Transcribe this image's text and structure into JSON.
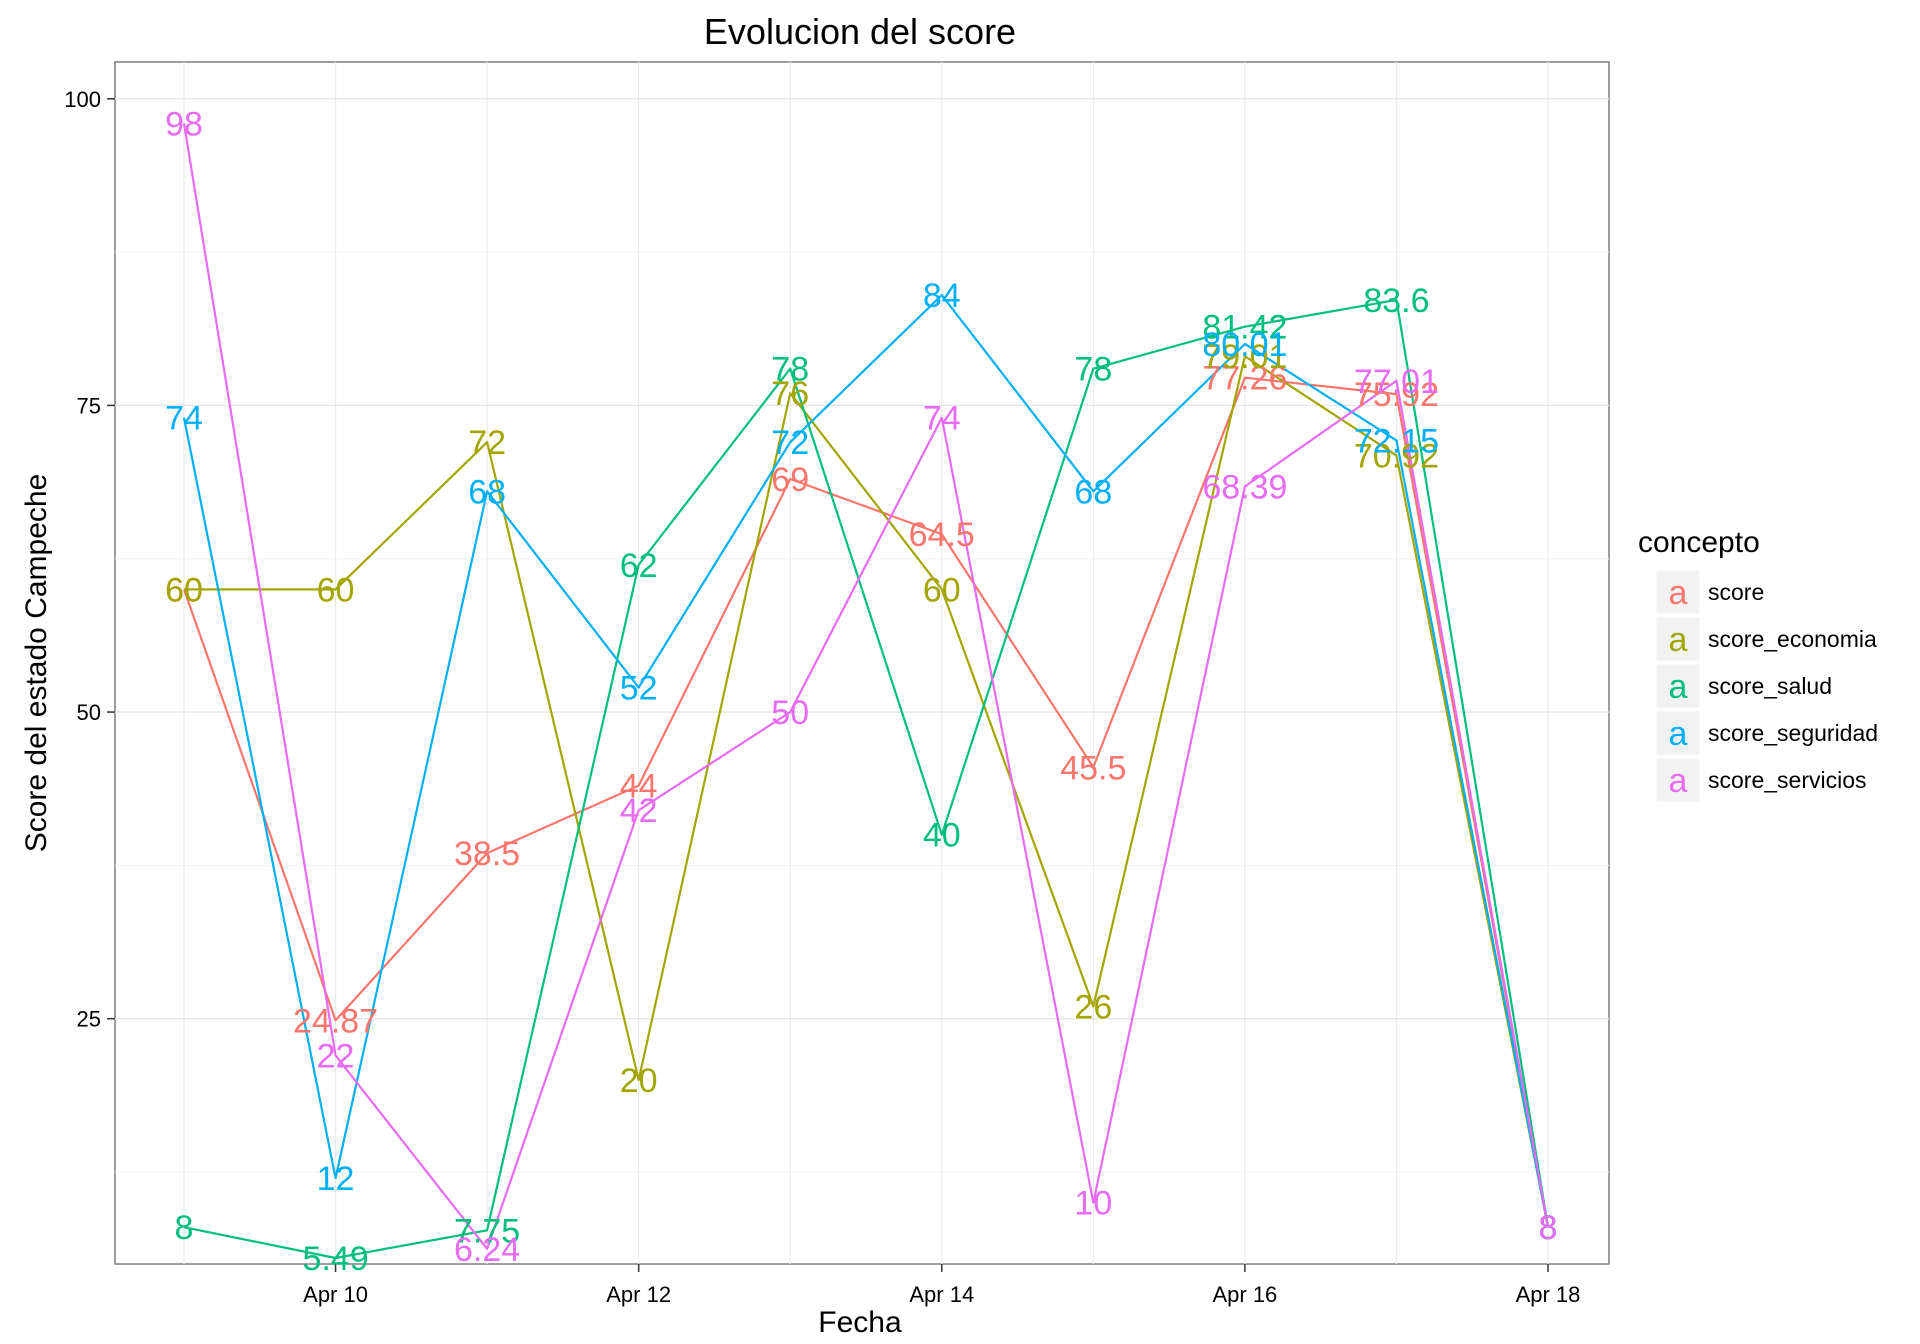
{
  "chart_data": {
    "type": "line",
    "title": "Evolucion del score",
    "xlabel": "Fecha",
    "ylabel": "Score del estado  Campeche",
    "x": [
      "Apr 9",
      "Apr 10",
      "Apr 11",
      "Apr 12",
      "Apr 13",
      "Apr 14",
      "Apr 15",
      "Apr 16",
      "Apr 17",
      "Apr 18"
    ],
    "x_ticks": [
      "Apr 10",
      "Apr 12",
      "Apr 14",
      "Apr 16",
      "Apr 18"
    ],
    "y_ticks": [
      "25",
      "50",
      "75",
      "100"
    ],
    "ylim": [
      5,
      103
    ],
    "grid": true,
    "legend_position": "right",
    "legend_title": "concepto",
    "legend_key_glyph": "a",
    "series": [
      {
        "name": "score",
        "color": "#F8766D",
        "values": [
          60,
          24.87,
          38.5,
          44,
          69,
          64.5,
          45.5,
          77.26,
          75.92,
          8
        ],
        "labels": [
          "60",
          "24.87",
          "38.5",
          "44",
          "69",
          "64.5",
          "45.5",
          "77.26",
          "75.92",
          "8"
        ]
      },
      {
        "name": "score_economia",
        "color": "#A3A500",
        "values": [
          60,
          60,
          72,
          20,
          76,
          60,
          26,
          79.01,
          70.92,
          8
        ],
        "labels": [
          "60",
          "60",
          "72",
          "20",
          "76",
          "60",
          "26",
          "79.01",
          "70.92",
          "8"
        ]
      },
      {
        "name": "score_salud",
        "color": "#00BF7D",
        "values": [
          8,
          5.49,
          7.75,
          62,
          78,
          40,
          78,
          81.42,
          83.6,
          8
        ],
        "labels": [
          "8",
          "5.49",
          "7.75",
          "62",
          "78",
          "40",
          "78",
          "81.42",
          "83.6",
          "8"
        ]
      },
      {
        "name": "score_seguridad",
        "color": "#00B0F6",
        "values": [
          74,
          12,
          68,
          52,
          72,
          84,
          68,
          80.01,
          72.15,
          8
        ],
        "labels": [
          "74",
          "12",
          "68",
          "52",
          "72",
          "84",
          "68",
          "80.01",
          "72.15",
          "8"
        ]
      },
      {
        "name": "score_servicios",
        "color": "#E76BF3",
        "values": [
          98,
          22,
          6.24,
          42,
          50,
          74,
          10,
          68.39,
          77.01,
          8
        ],
        "labels": [
          "98",
          "22",
          "6.24",
          "42",
          "50",
          "74",
          "10",
          "68.39",
          "77.01",
          "8"
        ]
      }
    ]
  }
}
